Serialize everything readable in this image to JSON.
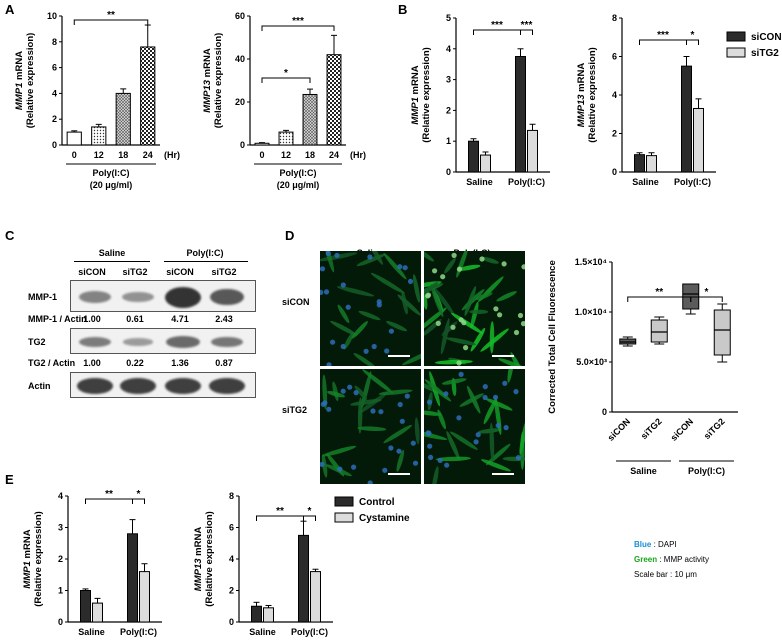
{
  "panels": {
    "A": "A",
    "B": "B",
    "C": "C",
    "D": "D",
    "E": "E"
  },
  "panelA": {
    "chart_data": [
      {
        "type": "bar",
        "ylabel_gene": "MMP1",
        "ylabel_suffix": " mRNA",
        "ylabel2": "(Relative expression)",
        "categories": [
          "0",
          "12",
          "18",
          "24"
        ],
        "values": [
          1.0,
          1.4,
          4.0,
          7.6
        ],
        "errors": [
          0.1,
          0.2,
          0.35,
          1.7
        ],
        "ylim": [
          0,
          10
        ],
        "yticks": [
          "0",
          "2",
          "4",
          "6",
          "8",
          "10"
        ],
        "unit": "(Hr)",
        "treatment": "Poly(I:C)",
        "dose": "(20 μg/ml)",
        "sig": [
          {
            "label": "**",
            "from": 0,
            "to": 3
          }
        ]
      },
      {
        "type": "bar",
        "ylabel_gene": "MMP13",
        "ylabel_suffix": " mRNA",
        "ylabel2": "(Relative expression)",
        "categories": [
          "0",
          "12",
          "18",
          "24"
        ],
        "values": [
          0.8,
          6.0,
          23.5,
          42.0
        ],
        "errors": [
          0.3,
          0.8,
          2.5,
          9.0
        ],
        "ylim": [
          0,
          60
        ],
        "yticks": [
          "0",
          "20",
          "40",
          "60"
        ],
        "unit": "(Hr)",
        "treatment": "Poly(I:C)",
        "dose": "(20 μg/ml)",
        "sig": [
          {
            "label": "*",
            "from": 0,
            "to": 2
          },
          {
            "label": "***",
            "from": 0,
            "to": 3
          }
        ]
      }
    ]
  },
  "panelB": {
    "legend": [
      "siCON",
      "siTG2"
    ],
    "chart_data": [
      {
        "type": "bar",
        "ylabel_gene": "MMP1",
        "ylabel_suffix": " mRNA",
        "ylabel2": "(Relative expression)",
        "categories": [
          "Saline",
          "Poly(I:C)"
        ],
        "series": [
          {
            "name": "siCON",
            "values": [
              1.0,
              3.75
            ],
            "errors": [
              0.08,
              0.25
            ]
          },
          {
            "name": "siTG2",
            "values": [
              0.55,
              1.35
            ],
            "errors": [
              0.1,
              0.2
            ]
          }
        ],
        "ylim": [
          0,
          5
        ],
        "yticks": [
          "0",
          "1",
          "2",
          "3",
          "4",
          "5"
        ],
        "sig": [
          "***",
          "***"
        ]
      },
      {
        "type": "bar",
        "ylabel_gene": "MMP13",
        "ylabel_suffix": " mRNA",
        "ylabel2": "(Relative expression)",
        "categories": [
          "Saline",
          "Poly(I:C)"
        ],
        "series": [
          {
            "name": "siCON",
            "values": [
              0.9,
              5.5
            ],
            "errors": [
              0.1,
              0.5
            ]
          },
          {
            "name": "siTG2",
            "values": [
              0.85,
              3.3
            ],
            "errors": [
              0.15,
              0.5
            ]
          }
        ],
        "ylim": [
          0,
          8
        ],
        "yticks": [
          "0",
          "2",
          "4",
          "6",
          "8"
        ],
        "sig": [
          "***",
          "*"
        ]
      }
    ]
  },
  "panelC": {
    "groups": [
      "Saline",
      "Poly(I:C)"
    ],
    "lanes": [
      "siCON",
      "siTG2",
      "siCON",
      "siTG2"
    ],
    "mmp1_label": "MMP-1",
    "mmp1_ratio_label": "MMP-1 / Actin",
    "mmp1_ratios": [
      "1.00",
      "0.61",
      "4.71",
      "2.43"
    ],
    "tg2_label": "TG2",
    "tg2_ratio_label": "TG2 / Actin",
    "tg2_ratios": [
      "1.00",
      "0.22",
      "1.36",
      "0.87"
    ],
    "actin_label": "Actin",
    "mmp1_band": [
      0.35,
      0.22,
      1.0,
      0.7
    ],
    "tg2_band": [
      0.4,
      0.15,
      0.55,
      0.45
    ]
  },
  "panelD": {
    "col_labels": [
      "Saline",
      "Poly(I:C)"
    ],
    "row_labels": [
      "siCON",
      "siTG2"
    ],
    "chart_data": {
      "type": "box",
      "ylabel": "Corrected Total Cell Fluorescence",
      "categories": [
        "siCON",
        "siTG2",
        "siCON",
        "siTG2"
      ],
      "groups": [
        "Saline",
        "Poly(I:C)"
      ],
      "yticks": [
        "0",
        "5.0×10³",
        "1.0×10⁴",
        "1.5×10⁴"
      ],
      "ylim": [
        0,
        15000
      ],
      "boxes": [
        {
          "min": 6600,
          "q1": 6800,
          "median": 7000,
          "q3": 7300,
          "max": 7500
        },
        {
          "min": 6800,
          "q1": 7000,
          "median": 8000,
          "q3": 9200,
          "max": 9500
        },
        {
          "min": 9800,
          "q1": 10300,
          "median": 11800,
          "q3": 12800,
          "max": 12800
        },
        {
          "min": 5000,
          "q1": 5700,
          "median": 8200,
          "q3": 10200,
          "max": 10800
        }
      ],
      "sig": [
        {
          "label": "**",
          "from": 0,
          "to": 2
        },
        {
          "label": "*",
          "from": 2,
          "to": 3
        }
      ]
    }
  },
  "panelE": {
    "legend": [
      "Control",
      "Cystamine"
    ],
    "chart_data": [
      {
        "type": "bar",
        "ylabel_gene": "MMP1",
        "ylabel_suffix": " mRNA",
        "ylabel2": "(Relative expression)",
        "categories": [
          "Saline",
          "Poly(I:C)"
        ],
        "series": [
          {
            "name": "Control",
            "values": [
              1.0,
              2.8
            ],
            "errors": [
              0.05,
              0.45
            ]
          },
          {
            "name": "Cystamine",
            "values": [
              0.6,
              1.6
            ],
            "errors": [
              0.15,
              0.25
            ]
          }
        ],
        "ylim": [
          0,
          4
        ],
        "yticks": [
          "0",
          "1",
          "2",
          "3",
          "4"
        ],
        "sig": [
          "**",
          "*"
        ]
      },
      {
        "type": "bar",
        "ylabel_gene": "MMP13",
        "ylabel_suffix": " mRNA",
        "ylabel2": "(Relative expression)",
        "categories": [
          "Saline",
          "Poly(I:C)"
        ],
        "series": [
          {
            "name": "Control",
            "values": [
              1.0,
              5.5
            ],
            "errors": [
              0.25,
              0.9
            ]
          },
          {
            "name": "Cystamine",
            "values": [
              0.9,
              3.2
            ],
            "errors": [
              0.15,
              0.15
            ]
          }
        ],
        "ylim": [
          0,
          8
        ],
        "yticks": [
          "0",
          "2",
          "4",
          "6",
          "8"
        ],
        "sig": [
          "**",
          "*"
        ]
      }
    ]
  },
  "notes": {
    "blue_word": "Blue",
    "blue_rest": " : DAPI",
    "green_word": "Green",
    "green_rest": " :  MMP activity",
    "scale": "Scale bar : 10 μm",
    "blue_color": "#1a8fd6",
    "green_color": "#1aa31a"
  }
}
